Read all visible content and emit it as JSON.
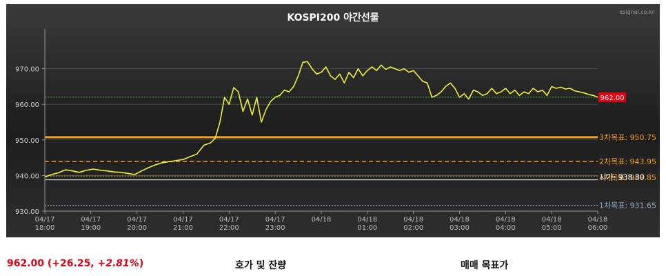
{
  "chart_data": {
    "type": "line",
    "title": "KOSPI200 야간선물",
    "watermark": "esignal.co.kr",
    "ylim": [
      930,
      980
    ],
    "yticks": [
      "930.00",
      "940.00",
      "950.00",
      "960.00",
      "970.00"
    ],
    "ytick_values": [
      930,
      940,
      950,
      960,
      970
    ],
    "xticks": [
      {
        "date": "04/17",
        "time": "18:00"
      },
      {
        "date": "04/17",
        "time": "19:00"
      },
      {
        "date": "04/17",
        "time": "20:00"
      },
      {
        "date": "04/17",
        "time": "21:00"
      },
      {
        "date": "04/17",
        "time": "22:00"
      },
      {
        "date": "04/17",
        "time": "23:00"
      },
      {
        "date": "04/18",
        "time": ""
      },
      {
        "date": "04/18",
        "time": "01:00"
      },
      {
        "date": "04/18",
        "time": "02:00"
      },
      {
        "date": "04/18",
        "time": "03:00"
      },
      {
        "date": "04/18",
        "time": "04:00"
      },
      {
        "date": "04/18",
        "time": "05:00"
      },
      {
        "date": "04/18",
        "time": "06:00"
      }
    ],
    "x_hours": [
      0,
      1,
      2,
      3,
      4,
      5,
      6,
      7,
      8,
      9,
      10,
      11,
      12
    ],
    "series": [
      {
        "color": "#f0f03a",
        "x": [
          0,
          0.15,
          0.3,
          0.45,
          0.6,
          0.75,
          0.9,
          1.05,
          1.2,
          1.35,
          1.5,
          1.65,
          1.8,
          1.95,
          2.1,
          2.25,
          2.4,
          2.55,
          2.7,
          2.85,
          3.0,
          3.15,
          3.3,
          3.45,
          3.6,
          3.7,
          3.8,
          3.9,
          4.0,
          4.1,
          4.2,
          4.3,
          4.4,
          4.5,
          4.6,
          4.7,
          4.8,
          4.9,
          5.0,
          5.1,
          5.2,
          5.3,
          5.4,
          5.5,
          5.6,
          5.7,
          5.8,
          5.9,
          6.0,
          6.1,
          6.2,
          6.3,
          6.4,
          6.5,
          6.6,
          6.7,
          6.8,
          6.9,
          7.0,
          7.1,
          7.2,
          7.3,
          7.4,
          7.5,
          7.6,
          7.7,
          7.8,
          7.9,
          8.0,
          8.1,
          8.2,
          8.3,
          8.4,
          8.5,
          8.6,
          8.7,
          8.8,
          8.9,
          9.0,
          9.1,
          9.2,
          9.3,
          9.4,
          9.5,
          9.6,
          9.7,
          9.8,
          9.9,
          10.0,
          10.1,
          10.2,
          10.3,
          10.4,
          10.5,
          10.6,
          10.7,
          10.8,
          10.9,
          11.0,
          11.1,
          11.2,
          11.3,
          11.4,
          11.5,
          11.6,
          11.7,
          11.8,
          11.9,
          12.0
        ],
        "y": [
          939.6,
          940.3,
          940.8,
          941.6,
          941.3,
          940.9,
          941.5,
          941.8,
          941.5,
          941.3,
          941.0,
          940.9,
          940.6,
          940.3,
          941.3,
          942.2,
          943.0,
          943.6,
          943.9,
          944.2,
          944.5,
          945.3,
          946.0,
          948.5,
          949.2,
          950.5,
          955.0,
          962.0,
          960.0,
          964.7,
          963.5,
          958.0,
          961.5,
          957.0,
          962.0,
          955.0,
          958.5,
          960.8,
          962.0,
          962.5,
          964.0,
          963.5,
          965.0,
          968.0,
          971.8,
          972.0,
          970.0,
          968.5,
          969.0,
          970.5,
          968.0,
          967.0,
          968.5,
          966.0,
          969.0,
          967.5,
          970.0,
          968.0,
          969.5,
          970.5,
          969.5,
          971.0,
          969.8,
          970.5,
          970.0,
          969.5,
          970.0,
          969.0,
          969.5,
          968.0,
          966.5,
          966.0,
          962.0,
          962.5,
          963.5,
          965.0,
          966.0,
          964.5,
          962.0,
          963.0,
          961.5,
          964.0,
          963.5,
          962.5,
          963.0,
          964.5,
          963.0,
          963.5,
          964.5,
          963.0,
          964.0,
          962.5,
          963.5,
          963.0,
          964.5,
          963.5,
          964.0,
          962.5,
          965.0,
          964.5,
          964.8,
          964.3,
          964.5,
          963.8,
          963.5,
          963.2,
          962.8,
          962.5,
          962.0
        ]
      }
    ],
    "current": {
      "value": 962.0,
      "label": "962.00",
      "color": "#e60012"
    },
    "reference_lines": [
      {
        "label": "3차목표: 950.75",
        "value": 950.75,
        "color": "#f5a021",
        "style": "solid-thick"
      },
      {
        "label": "2차목표: 943.95",
        "value": 943.95,
        "color": "#f5a021",
        "style": "dashed"
      },
      {
        "label": "1차목표: 939.85",
        "value": 939.85,
        "color": "#f5a021",
        "style": "dotted"
      },
      {
        "label": "시가: 938.80",
        "value": 938.8,
        "color": "#ffffff",
        "style": "solid-thin"
      },
      {
        "label": "1차목표: 931.65",
        "value": 931.65,
        "color": "#8eaac8",
        "style": "dotted"
      }
    ]
  },
  "summary": {
    "price_change": "962.00 (+26.25, ",
    "percent": "+2.81%",
    "close_paren": ")",
    "links": {
      "orderbook": "호가 및 잔량",
      "targets": "매매 목표가"
    }
  }
}
